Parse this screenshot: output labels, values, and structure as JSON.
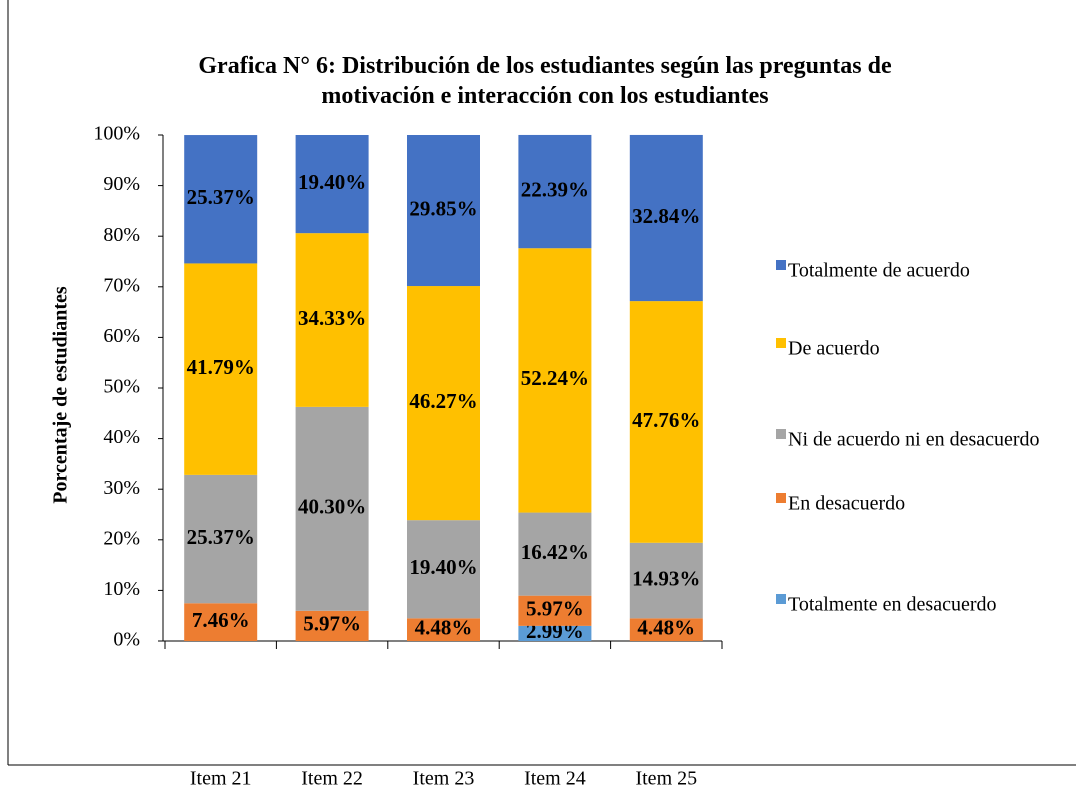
{
  "chart_data": {
    "type": "stacked_bar",
    "title": "Grafica N° 6: Distribución de los estudiantes según las preguntas de motivación e interacción con los estudiantes",
    "ylabel": "Porcentaje de estudiantes",
    "categories": [
      "Item 21",
      "Item 22",
      "Item 23",
      "Item 24",
      "Item 25"
    ],
    "series": [
      {
        "name": "Totalmente en desacuerdo",
        "color": "#5b9bd5",
        "values": [
          0,
          0,
          0,
          2.99,
          0
        ],
        "value_labels": [
          null,
          null,
          null,
          "2.99%",
          null
        ]
      },
      {
        "name": "En desacuerdo",
        "color": "#ed7d31",
        "values": [
          7.46,
          5.97,
          4.48,
          5.97,
          4.48
        ],
        "value_labels": [
          "7.46%",
          "5.97%",
          "4.48%",
          "5.97%",
          "4.48%"
        ]
      },
      {
        "name": "Ni de acuerdo ni en desacuerdo",
        "color": "#a5a5a5",
        "values": [
          25.37,
          40.3,
          19.4,
          16.42,
          14.93
        ],
        "value_labels": [
          "25.37%",
          "40.30%",
          "19.40%",
          "16.42%",
          "14.93%"
        ]
      },
      {
        "name": "De acuerdo",
        "color": "#ffc000",
        "values": [
          41.79,
          34.33,
          46.27,
          52.24,
          47.76
        ],
        "value_labels": [
          "41.79%",
          "34.33%",
          "46.27%",
          "52.24%",
          "47.76%"
        ]
      },
      {
        "name": "Totalmente de acuerdo",
        "color": "#4472c4",
        "values": [
          25.37,
          19.4,
          29.85,
          22.39,
          32.84
        ],
        "value_labels": [
          "25.37%",
          "19.40%",
          "29.85%",
          "22.39%",
          "32.84%"
        ]
      }
    ],
    "ylim": [
      0,
      100
    ],
    "yticks": [
      {
        "value": 0,
        "label": "0%"
      },
      {
        "value": 10,
        "label": "10%"
      },
      {
        "value": 20,
        "label": "20%"
      },
      {
        "value": 30,
        "label": "30%"
      },
      {
        "value": 40,
        "label": "40%"
      },
      {
        "value": 50,
        "label": "50%"
      },
      {
        "value": 60,
        "label": "60%"
      },
      {
        "value": 70,
        "label": "70%"
      },
      {
        "value": 80,
        "label": "80%"
      },
      {
        "value": 90,
        "label": "90%"
      },
      {
        "value": 100,
        "label": "100%"
      }
    ],
    "legend": "right"
  }
}
